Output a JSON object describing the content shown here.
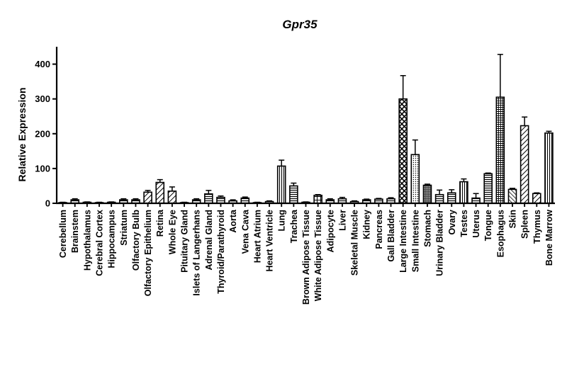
{
  "chart_data": {
    "type": "bar",
    "title": "Gpr35",
    "xlabel": "",
    "ylabel": "Relative Expression",
    "ylim": [
      0,
      450
    ],
    "yticks": [
      0,
      100,
      200,
      300,
      400
    ],
    "grid": false,
    "legend": "none",
    "categories": [
      "Cerebellum",
      "Brainstem",
      "Hypothalamus",
      "Cerebral Cortex",
      "Hippocampus",
      "Striatum",
      "Olfactory Bulb",
      "Olfactory Epithelium",
      "Retina",
      "Whole Eye",
      "Pituitary Gland",
      "Islets of Langerhans",
      "Adrenal Gland",
      "Thyroid/Parathyroid",
      "Aorta",
      "Vena Cava",
      "Heart Atrium",
      "Heart Ventricle",
      "Lung",
      "Trachea",
      "Brown Adipose Tissue",
      "White Adipose Tissue",
      "Adipocyte",
      "Liver",
      "Skeletal Muscle",
      "Kidney",
      "Pancreas",
      "Gall Bladder",
      "Large Intestine",
      "Small Intestine",
      "Stomach",
      "Urinary Bladder",
      "Ovary",
      "Testes",
      "Uterus",
      "Tongue",
      "Esophagus",
      "Skin",
      "Spleen",
      "Thymus",
      "Bone Marrow"
    ],
    "values": [
      2,
      10,
      3,
      2,
      3,
      10,
      10,
      32,
      60,
      35,
      2,
      10,
      27,
      17,
      7,
      15,
      2,
      5,
      107,
      50,
      3,
      23,
      10,
      13,
      5,
      10,
      12,
      13,
      300,
      140,
      52,
      25,
      30,
      62,
      15,
      85,
      305,
      40,
      223,
      28,
      202
    ],
    "errors": [
      1,
      3,
      1,
      1,
      1,
      3,
      3,
      5,
      8,
      12,
      1,
      3,
      10,
      4,
      3,
      3,
      1,
      2,
      17,
      8,
      1,
      2,
      3,
      4,
      2,
      2,
      2,
      3,
      67,
      42,
      3,
      13,
      9,
      8,
      13,
      2,
      123,
      3,
      25,
      2,
      5
    ],
    "patterns": [
      "hlines",
      "hlines",
      "hlines",
      "hlines",
      "hlines",
      "hlines",
      "hlines",
      "diag",
      "diag",
      "diag",
      "solid",
      "hlines",
      "hlines",
      "hlines",
      "hlines",
      "hlines",
      "hlines",
      "hlines",
      "vlines",
      "hlines",
      "hlines",
      "grid",
      "hlines",
      "hlines",
      "hlines",
      "hlines",
      "hlines",
      "hlines",
      "crosshatch",
      "dots",
      "dense",
      "hlines",
      "hlines",
      "vlines",
      "hlines",
      "hlines",
      "densegrid",
      "diag2",
      "diag",
      "diag",
      "vlines"
    ]
  }
}
